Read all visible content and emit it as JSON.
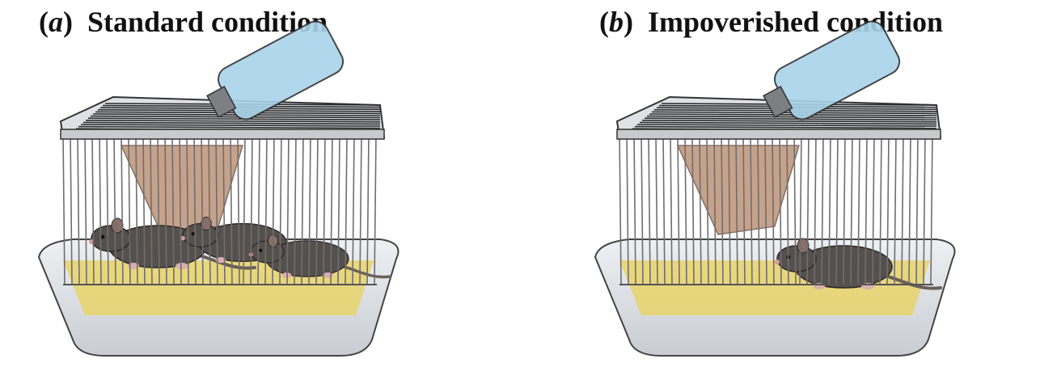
{
  "panels": [
    {
      "letter": "a",
      "title": "Standard condition",
      "rats": 3
    },
    {
      "letter": "b",
      "title": "Impoverished condition",
      "rats": 1
    }
  ],
  "colors": {
    "tray": "#c9cdd3",
    "bars": "#6e6e72",
    "bedding": "#e9d36a",
    "bottle": "#a9d3ea",
    "food": "#b58363",
    "rat": "#56504c"
  }
}
